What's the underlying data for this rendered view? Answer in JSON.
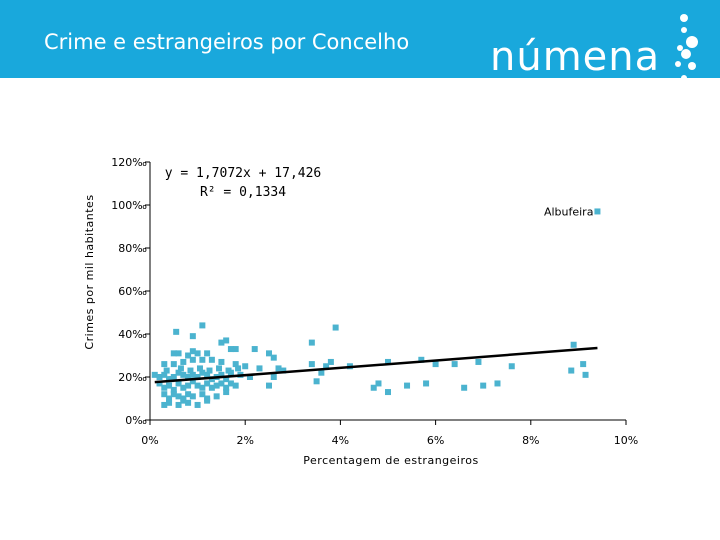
{
  "header": {
    "title": "Crime e estrangeiros por Concelho",
    "logo_text": "númena"
  },
  "colors": {
    "header_bg": "#19a8dc",
    "marker": "#4bb3cf",
    "trendline": "#000000"
  },
  "chart_data": {
    "type": "scatter",
    "title": "",
    "xlabel": "Percentagem de estrangeiros",
    "ylabel": "Crimes por mil habitantes",
    "xlim": [
      0,
      10
    ],
    "ylim": [
      0,
      120
    ],
    "x_ticks": [
      "0%",
      "2%",
      "4%",
      "6%",
      "8%",
      "10%"
    ],
    "y_ticks": [
      "0‰",
      "20‰",
      "40‰",
      "60‰",
      "80‰",
      "100‰",
      "120‰"
    ],
    "grid": false,
    "trendline": {
      "slope": 1.7072,
      "intercept": 17.426,
      "x_range": [
        0.1,
        9.4
      ],
      "equation": "y = 1,7072x + 17,426",
      "r2": "R² = 0,1334"
    },
    "annotation": {
      "label": "Albufeira",
      "x": 9.4,
      "y": 97
    },
    "points": [
      [
        0.55,
        41
      ],
      [
        1.1,
        44
      ],
      [
        0.9,
        39
      ],
      [
        1.5,
        36
      ],
      [
        1.6,
        37
      ],
      [
        1.8,
        33
      ],
      [
        1.7,
        33
      ],
      [
        2.2,
        33
      ],
      [
        2.5,
        31
      ],
      [
        2.6,
        29
      ],
      [
        3.4,
        36
      ],
      [
        3.9,
        43
      ],
      [
        0.5,
        31
      ],
      [
        0.6,
        31
      ],
      [
        0.8,
        30
      ],
      [
        0.9,
        32
      ],
      [
        1.0,
        31
      ],
      [
        1.2,
        31
      ],
      [
        0.3,
        26
      ],
      [
        0.5,
        26
      ],
      [
        0.7,
        27
      ],
      [
        0.9,
        28
      ],
      [
        1.1,
        28
      ],
      [
        1.3,
        28
      ],
      [
        1.5,
        27
      ],
      [
        1.8,
        26
      ],
      [
        2.0,
        25
      ],
      [
        2.3,
        24
      ],
      [
        2.7,
        24
      ],
      [
        3.4,
        26
      ],
      [
        3.7,
        25
      ],
      [
        4.2,
        25
      ],
      [
        3.8,
        27
      ],
      [
        5.0,
        27
      ],
      [
        5.7,
        28
      ],
      [
        6.0,
        26
      ],
      [
        6.4,
        26
      ],
      [
        6.9,
        27
      ],
      [
        7.6,
        25
      ],
      [
        8.9,
        35
      ],
      [
        8.85,
        23
      ],
      [
        9.1,
        26
      ],
      [
        9.15,
        21
      ],
      [
        0.1,
        21
      ],
      [
        0.2,
        20
      ],
      [
        0.3,
        21
      ],
      [
        0.4,
        19
      ],
      [
        0.5,
        20
      ],
      [
        0.6,
        22
      ],
      [
        0.7,
        21
      ],
      [
        0.8,
        20
      ],
      [
        0.9,
        21
      ],
      [
        1.0,
        20
      ],
      [
        1.1,
        22
      ],
      [
        1.2,
        21
      ],
      [
        1.3,
        19
      ],
      [
        1.4,
        20
      ],
      [
        1.5,
        21
      ],
      [
        1.6,
        19
      ],
      [
        1.7,
        22
      ],
      [
        1.9,
        21
      ],
      [
        2.1,
        20
      ],
      [
        2.6,
        20
      ],
      [
        2.8,
        23
      ],
      [
        3.6,
        22
      ],
      [
        0.2,
        17
      ],
      [
        0.3,
        15
      ],
      [
        0.4,
        16
      ],
      [
        0.5,
        14
      ],
      [
        0.6,
        17
      ],
      [
        0.7,
        15
      ],
      [
        0.8,
        16
      ],
      [
        0.9,
        18
      ],
      [
        1.0,
        16
      ],
      [
        1.1,
        15
      ],
      [
        1.2,
        17
      ],
      [
        1.3,
        15
      ],
      [
        1.4,
        16
      ],
      [
        1.5,
        17
      ],
      [
        1.6,
        15
      ],
      [
        1.7,
        17
      ],
      [
        1.8,
        16
      ],
      [
        2.5,
        16
      ],
      [
        3.5,
        18
      ],
      [
        4.7,
        15
      ],
      [
        4.8,
        17
      ],
      [
        5.0,
        13
      ],
      [
        5.4,
        16
      ],
      [
        5.8,
        17
      ],
      [
        6.6,
        15
      ],
      [
        7.0,
        16
      ],
      [
        7.3,
        17
      ],
      [
        0.3,
        12
      ],
      [
        0.4,
        10
      ],
      [
        0.5,
        12
      ],
      [
        0.6,
        11
      ],
      [
        0.7,
        10
      ],
      [
        0.8,
        12
      ],
      [
        0.9,
        11
      ],
      [
        1.1,
        12
      ],
      [
        1.2,
        10
      ],
      [
        1.4,
        11
      ],
      [
        1.6,
        13
      ],
      [
        0.3,
        7
      ],
      [
        0.4,
        8
      ],
      [
        0.6,
        7
      ],
      [
        0.7,
        9
      ],
      [
        0.8,
        8
      ],
      [
        1.0,
        7
      ],
      [
        1.2,
        9
      ],
      [
        0.45,
        19
      ],
      [
        0.65,
        24
      ],
      [
        0.85,
        23
      ],
      [
        1.05,
        24
      ],
      [
        1.25,
        23
      ],
      [
        1.45,
        24
      ],
      [
        1.65,
        23
      ],
      [
        0.35,
        23
      ],
      [
        1.85,
        24
      ]
    ]
  }
}
